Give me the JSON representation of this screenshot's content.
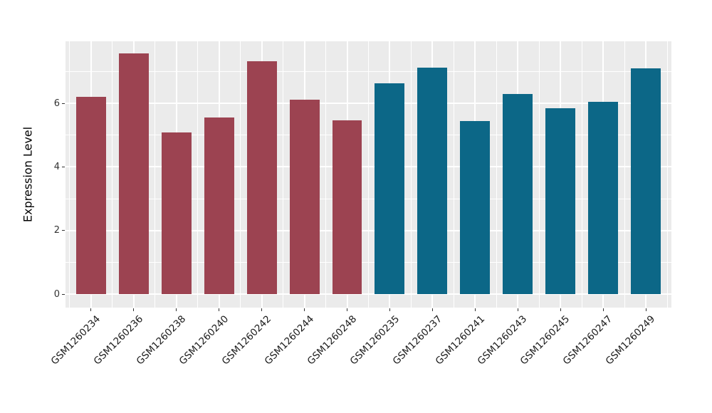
{
  "figure": {
    "background_color": "#ffffff",
    "panel_background_color": "#ebebeb",
    "gridline_color": "#ffffff"
  },
  "chart_data": {
    "type": "bar",
    "title": "",
    "xlabel": "",
    "ylabel": "Expression Level",
    "ylim": [
      -0.42,
      7.95
    ],
    "yticks": [
      0,
      2,
      4,
      6
    ],
    "yticks_minor": [
      1,
      3,
      5,
      7
    ],
    "grid": true,
    "legend_position": "none",
    "bar_width_fraction": 0.7,
    "groups": [
      {
        "name": "group-1",
        "color": "#9c4351"
      },
      {
        "name": "group-2",
        "color": "#0c6787"
      }
    ],
    "bars": [
      {
        "label": "GSM1260234",
        "value": 6.2,
        "group": 0
      },
      {
        "label": "GSM1260236",
        "value": 7.58,
        "group": 0
      },
      {
        "label": "GSM1260238",
        "value": 5.08,
        "group": 0
      },
      {
        "label": "GSM1260240",
        "value": 5.56,
        "group": 0
      },
      {
        "label": "GSM1260242",
        "value": 7.32,
        "group": 0
      },
      {
        "label": "GSM1260244",
        "value": 6.11,
        "group": 0
      },
      {
        "label": "GSM1260248",
        "value": 5.46,
        "group": 0
      },
      {
        "label": "GSM1260235",
        "value": 6.63,
        "group": 1
      },
      {
        "label": "GSM1260237",
        "value": 7.12,
        "group": 1
      },
      {
        "label": "GSM1260241",
        "value": 5.44,
        "group": 1
      },
      {
        "label": "GSM1260243",
        "value": 6.29,
        "group": 1
      },
      {
        "label": "GSM1260245",
        "value": 5.85,
        "group": 1
      },
      {
        "label": "GSM1260247",
        "value": 6.05,
        "group": 1
      },
      {
        "label": "GSM1260249",
        "value": 7.1,
        "group": 1
      }
    ]
  }
}
